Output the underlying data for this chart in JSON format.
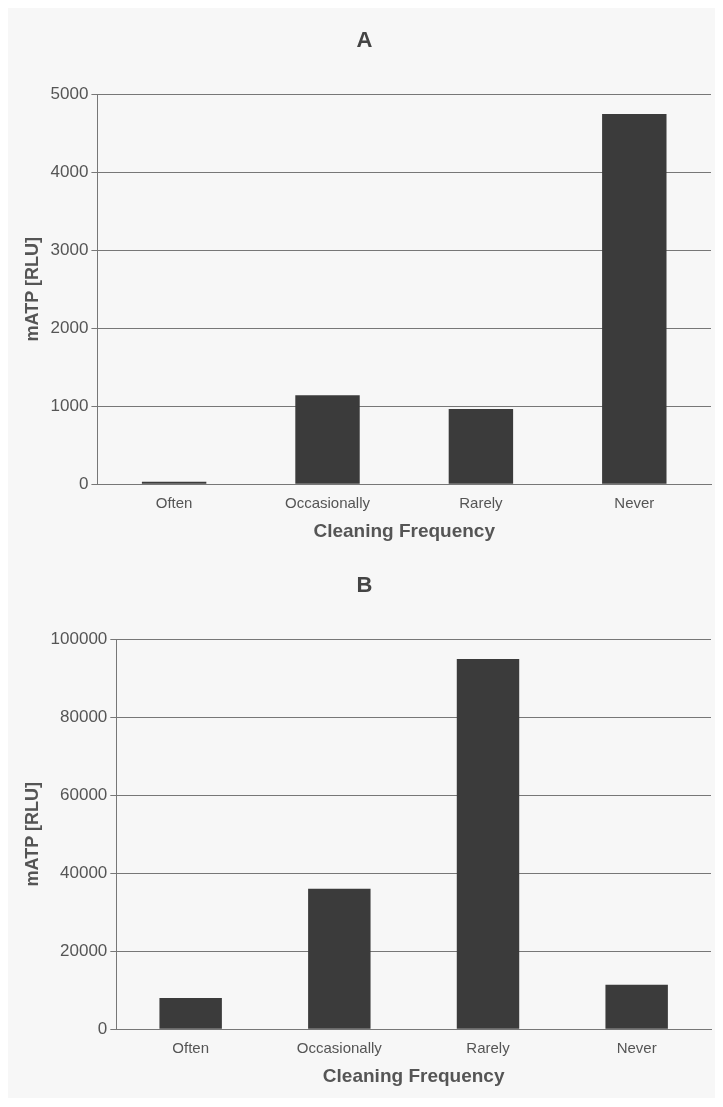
{
  "chart_data": [
    {
      "type": "bar",
      "title": "A",
      "xlabel": "Cleaning Frequency",
      "ylabel": "mATP [RLU]",
      "categories": [
        "Often",
        "Occasionally",
        "Rarely",
        "Never"
      ],
      "values": [
        30,
        1140,
        965,
        4750
      ],
      "color": "#3b3b3b",
      "ylim": [
        0,
        5000
      ],
      "yticks": [
        0,
        1000,
        2000,
        3000,
        4000,
        5000
      ],
      "grid": "y",
      "legend": false
    },
    {
      "type": "bar",
      "title": "B",
      "xlabel": "Cleaning Frequency",
      "ylabel": "mATP [RLU]",
      "categories": [
        "Often",
        "Occasionally",
        "Rarely",
        "Never"
      ],
      "values": [
        8000,
        36000,
        95000,
        11400
      ],
      "color": "#3b3b3b",
      "ylim": [
        0,
        100000
      ],
      "yticks": [
        0,
        20000,
        40000,
        60000,
        80000,
        100000
      ],
      "grid": "y",
      "legend": false
    }
  ]
}
